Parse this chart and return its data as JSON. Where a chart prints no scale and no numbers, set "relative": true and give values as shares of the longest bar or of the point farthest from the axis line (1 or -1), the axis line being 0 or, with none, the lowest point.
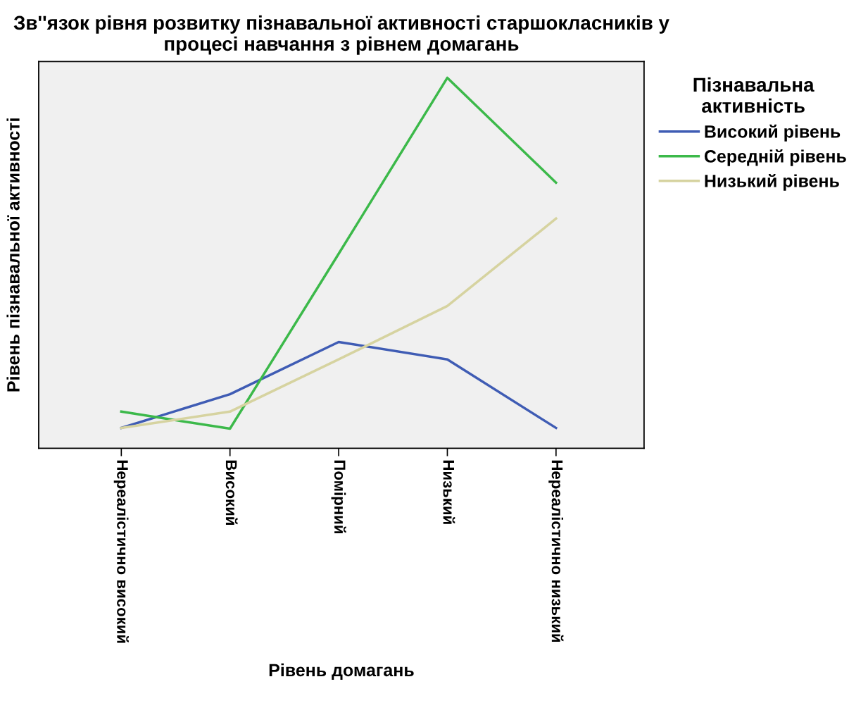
{
  "chart_data": {
    "type": "line",
    "title": "Зв''язок рівня розвитку пізнавальної активності старшокласників у процесі навчання з рівнем домагань",
    "xlabel": "Рівень домагань",
    "ylabel": "Рівень пізнавальної активності",
    "legend_title": "Пізнавальна\nактивність",
    "categories": [
      "Нереалістично високий",
      "Високий",
      "Помірний",
      "Низький",
      "Нереалістично низький"
    ],
    "relative": true,
    "legend": "right",
    "grid": false,
    "marker": "none",
    "line_style": "solid",
    "series": [
      {
        "name": "Високий рівень",
        "color": "#3f5cb4",
        "values": [
          0.055,
          0.146,
          0.287,
          0.24,
          0.055
        ]
      },
      {
        "name": "Середній рівень",
        "color": "#3cb94a",
        "values": [
          0.099,
          0.053,
          0.525,
          1.0,
          0.717
        ]
      },
      {
        "name": "Низький рівень",
        "color": "#d6d3a0",
        "values": [
          0.055,
          0.099,
          0.24,
          0.384,
          0.62
        ]
      }
    ]
  }
}
